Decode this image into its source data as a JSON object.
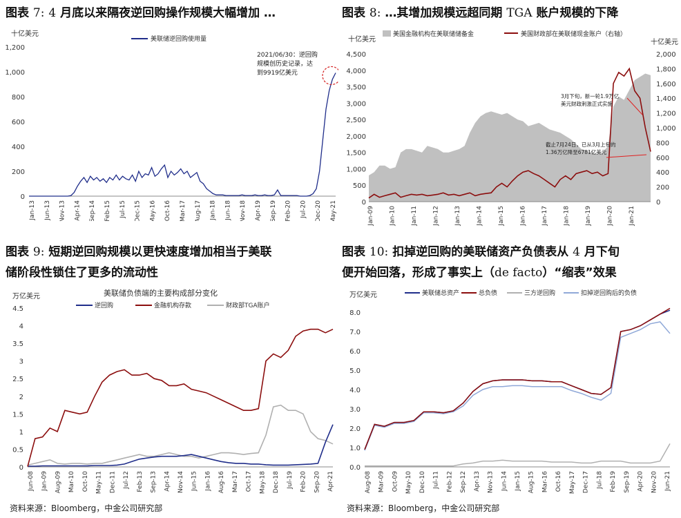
{
  "footer": {
    "source": "资料来源：Bloomberg，中金公司研究部"
  },
  "charts": [
    {
      "id": "c7",
      "caption_prefix": "图表",
      "caption_num": "7:",
      "caption_num2": "4",
      "caption_text": "月底以来隔夜逆回购操作规模大幅增加 …",
      "chart_data_ref": 0
    },
    {
      "id": "c8",
      "caption_prefix": "图表",
      "caption_num": "8:",
      "caption_text": "…其增加规模远超同期",
      "caption_tga": "TGA",
      "caption_text2": "账户规模的下降",
      "chart_data_ref": 1
    },
    {
      "id": "c9",
      "caption_prefix": "图表",
      "caption_num": "9:",
      "caption_text": "短期逆回购规模以更快速度增加相当于美联",
      "caption_line2": "储阶段性锁住了更多的流动性",
      "chart_data_ref": 2
    },
    {
      "id": "c10",
      "caption_prefix": "图表",
      "caption_num": "10:",
      "caption_text": "扣掉逆回购的美联储资产负债表从",
      "caption_num2": "4",
      "caption_text2": "月下旬",
      "caption_line2a": "便开始回落，形成了事实上（",
      "caption_defacto": "de facto",
      "caption_line2b": "）“缩表”效果",
      "chart_data_ref": 3
    }
  ],
  "chart_data": [
    {
      "type": "line",
      "title": "",
      "ylabel": "十亿美元",
      "ylim": [
        0,
        1200
      ],
      "yticks": [
        "0",
        "200",
        "400",
        "600",
        "800",
        "1,000",
        "1,200"
      ],
      "xticks": [
        "Jan-13",
        "Jun-13",
        "Nov-13",
        "Apr-14",
        "Sep-14",
        "Feb-15",
        "Jul-15",
        "Dec-15",
        "May-16",
        "Oct-16",
        "Mar-17",
        "Aug-17",
        "Jan-18",
        "Jun-18",
        "Nov-18",
        "Apr-19",
        "Sep-19",
        "Feb-20",
        "Jul-20",
        "Dec-20",
        "May-21"
      ],
      "legend": [
        "美联储逆回购使用量"
      ],
      "series_color": "#1f2d8a",
      "annotation": {
        "text": [
          "2021/06/30：逆回购",
          "规模创历史记录，达",
          "到9919亿美元"
        ],
        "value": 991.9,
        "date": "2021/06/30"
      },
      "series": [
        {
          "name": "美联储逆回购使用量",
          "values": [
            0,
            0,
            0,
            0,
            0,
            0,
            0,
            0,
            0,
            0,
            0,
            0,
            0,
            5,
            30,
            80,
            120,
            150,
            110,
            160,
            130,
            150,
            120,
            140,
            110,
            150,
            130,
            170,
            130,
            160,
            140,
            130,
            170,
            120,
            200,
            150,
            180,
            170,
            230,
            160,
            180,
            220,
            250,
            150,
            200,
            170,
            190,
            220,
            180,
            200,
            150,
            170,
            190,
            120,
            100,
            60,
            40,
            20,
            10,
            10,
            10,
            5,
            5,
            5,
            5,
            5,
            10,
            5,
            5,
            5,
            10,
            5,
            5,
            10,
            5,
            5,
            10,
            50,
            5,
            5,
            5,
            5,
            5,
            5,
            0,
            0,
            0,
            5,
            20,
            60,
            200,
            450,
            700,
            850,
            940,
            991.9
          ]
        }
      ]
    },
    {
      "type": "area+line",
      "ylabel_left": "十亿美元",
      "ylabel_right": "十亿美元",
      "ylim_left": [
        0,
        4500
      ],
      "ylim_right": [
        0,
        2000
      ],
      "yticks_left": [
        "0",
        "500",
        "1,000",
        "1,500",
        "2,000",
        "2,500",
        "3,000",
        "3,500",
        "4,000",
        "4,500"
      ],
      "yticks_right": [
        "0",
        "200",
        "400",
        "600",
        "800",
        "1,000",
        "1,200",
        "1,400",
        "1,600",
        "1,800",
        "2,000"
      ],
      "xticks": [
        "Jan-09",
        "Jan-10",
        "Jan-11",
        "Jan-12",
        "Jan-13",
        "Jan-14",
        "Jan-15",
        "Jan-16",
        "Jan-17",
        "Jan-18",
        "Jan-19",
        "Jan-20",
        "Jan-21"
      ],
      "legend": [
        "美国金融机构在美联储储备金",
        "美国财政部在美联储现金账户（右轴）"
      ],
      "area_color": "#c0c0c0",
      "line_color": "#8b0d0d",
      "annotations": [
        [
          "3月下旬，新一轮1.9万亿",
          "美元财政刺激正式实施"
        ],
        [
          "截止7月24日，已从3月上旬的",
          "1.36万亿降至6781亿美元"
        ]
      ],
      "series": [
        {
          "name": "美国金融机构在美联储储备金",
          "axis": "left",
          "values": [
            800,
            900,
            1100,
            1100,
            1000,
            1050,
            1500,
            1600,
            1600,
            1550,
            1500,
            1700,
            1650,
            1600,
            1500,
            1500,
            1550,
            1600,
            1700,
            2100,
            2400,
            2600,
            2700,
            2750,
            2700,
            2650,
            2700,
            2600,
            2500,
            2450,
            2300,
            2350,
            2400,
            2300,
            2200,
            2150,
            2100,
            2000,
            1900,
            1750,
            1600,
            1550,
            1500,
            1450,
            1500,
            1700,
            2900,
            3200,
            3100,
            3400,
            3700,
            3800,
            3900,
            3850
          ]
        },
        {
          "name": "美国财政部在美联储现金账户（右轴）",
          "axis": "right",
          "values": [
            50,
            100,
            60,
            80,
            100,
            120,
            60,
            80,
            100,
            90,
            100,
            80,
            90,
            100,
            120,
            90,
            100,
            80,
            100,
            120,
            80,
            100,
            110,
            120,
            200,
            250,
            200,
            280,
            350,
            400,
            420,
            380,
            350,
            300,
            250,
            200,
            300,
            350,
            300,
            380,
            400,
            420,
            380,
            400,
            350,
            380,
            1600,
            1750,
            1700,
            1800,
            1500,
            1400,
            1000,
            678
          ]
        }
      ]
    },
    {
      "type": "line",
      "title": "美联储负债端的主要构成部分变化",
      "ylabel": "万亿美元",
      "ylim": [
        0,
        4.5
      ],
      "yticks": [
        "0",
        "0.5",
        "1",
        "1.5",
        "2",
        "2.5",
        "3",
        "3.5",
        "4",
        "4.5"
      ],
      "xticks": [
        "Jun-08",
        "Jan-09",
        "Aug-09",
        "Mar-10",
        "Oct-10",
        "May-11",
        "Dec-11",
        "Jul-12",
        "Feb-13",
        "Sep-13",
        "Apr-14",
        "Nov-14",
        "Jun-15",
        "Jan-16",
        "Aug-16",
        "Mar-17",
        "Oct-17",
        "May-18",
        "Dec-18",
        "Jul-19",
        "Feb-20",
        "Sep-20",
        "Apr-21"
      ],
      "legend": [
        "逆回购",
        "金融机构存款",
        "财政部TGA账户"
      ],
      "colors": [
        "#1f2d8a",
        "#8b0d0d",
        "#b0b0b0"
      ],
      "series": [
        {
          "name": "逆回购",
          "values": [
            0.02,
            0.02,
            0.03,
            0.03,
            0.03,
            0.03,
            0.03,
            0.03,
            0.03,
            0.04,
            0.04,
            0.04,
            0.05,
            0.08,
            0.15,
            0.22,
            0.25,
            0.28,
            0.3,
            0.3,
            0.3,
            0.32,
            0.35,
            0.3,
            0.25,
            0.2,
            0.15,
            0.12,
            0.1,
            0.1,
            0.08,
            0.08,
            0.06,
            0.05,
            0.05,
            0.05,
            0.06,
            0.07,
            0.08,
            0.1,
            0.7,
            1.2
          ]
        },
        {
          "name": "金融机构存款",
          "values": [
            0.01,
            0.8,
            0.85,
            1.1,
            1.0,
            1.6,
            1.55,
            1.5,
            1.55,
            2.0,
            2.4,
            2.6,
            2.7,
            2.75,
            2.6,
            2.6,
            2.65,
            2.5,
            2.45,
            2.3,
            2.3,
            2.35,
            2.2,
            2.15,
            2.1,
            2.0,
            1.9,
            1.8,
            1.7,
            1.6,
            1.6,
            1.65,
            3.0,
            3.2,
            3.1,
            3.3,
            3.7,
            3.85,
            3.9,
            3.9,
            3.8,
            3.9
          ]
        },
        {
          "name": "财政部TGA账户",
          "values": [
            0.05,
            0.1,
            0.15,
            0.2,
            0.1,
            0.08,
            0.1,
            0.1,
            0.08,
            0.1,
            0.1,
            0.15,
            0.2,
            0.25,
            0.3,
            0.35,
            0.3,
            0.3,
            0.35,
            0.4,
            0.35,
            0.3,
            0.3,
            0.25,
            0.3,
            0.35,
            0.4,
            0.4,
            0.38,
            0.35,
            0.38,
            0.4,
            0.9,
            1.7,
            1.75,
            1.6,
            1.6,
            1.5,
            1.0,
            0.8,
            0.75,
            0.65
          ]
        }
      ]
    },
    {
      "type": "line",
      "ylabel": "万亿美元",
      "ylim": [
        0,
        8.5
      ],
      "yticks": [
        "0.0",
        "1.0",
        "2.0",
        "3.0",
        "4.0",
        "5.0",
        "6.0",
        "7.0",
        "8.0"
      ],
      "xticks": [
        "Aug-08",
        "Mar-09",
        "Oct-09",
        "May-10",
        "Dec-10",
        "Jul-11",
        "Feb-12",
        "Sep-12",
        "Apr-13",
        "Nov-13",
        "Jun-14",
        "Jan-15",
        "Aug-15",
        "Mar-16",
        "Oct-16",
        "May-17",
        "Dec-17",
        "Jul-18",
        "Feb-19",
        "Sep-19",
        "Apr-20",
        "Nov-20",
        "Jun-21"
      ],
      "legend": [
        "美联储总资产",
        "总负债",
        "三方逆回购",
        "扣掉逆回购后的负债"
      ],
      "colors": [
        "#1f2d8a",
        "#8b0d0d",
        "#b0b0b0",
        "#8fa8d8"
      ],
      "series": [
        {
          "name": "美联储总资产",
          "values": [
            0.9,
            2.2,
            2.1,
            2.3,
            2.3,
            2.4,
            2.85,
            2.85,
            2.8,
            2.9,
            3.3,
            3.9,
            4.3,
            4.45,
            4.5,
            4.5,
            4.5,
            4.45,
            4.45,
            4.4,
            4.4,
            4.2,
            4.0,
            3.8,
            3.75,
            4.1,
            7.0,
            7.1,
            7.3,
            7.6,
            7.9,
            8.1
          ]
        },
        {
          "name": "总负债",
          "values": [
            0.9,
            2.2,
            2.1,
            2.3,
            2.3,
            2.4,
            2.85,
            2.85,
            2.8,
            2.9,
            3.3,
            3.9,
            4.3,
            4.45,
            4.5,
            4.5,
            4.5,
            4.45,
            4.45,
            4.4,
            4.4,
            4.2,
            4.0,
            3.8,
            3.75,
            4.1,
            7.0,
            7.1,
            7.3,
            7.6,
            7.9,
            8.2
          ]
        },
        {
          "name": "三方逆回购",
          "values": [
            0.05,
            0.05,
            0.05,
            0.05,
            0.05,
            0.05,
            0.05,
            0.05,
            0.05,
            0.05,
            0.15,
            0.2,
            0.3,
            0.3,
            0.35,
            0.3,
            0.3,
            0.3,
            0.3,
            0.25,
            0.25,
            0.25,
            0.2,
            0.2,
            0.3,
            0.3,
            0.3,
            0.2,
            0.2,
            0.2,
            0.3,
            1.2
          ]
        },
        {
          "name": "扣掉逆回购后的负债",
          "values": [
            0.85,
            2.15,
            2.05,
            2.25,
            2.25,
            2.35,
            2.8,
            2.8,
            2.75,
            2.85,
            3.15,
            3.7,
            4.0,
            4.15,
            4.15,
            4.2,
            4.2,
            4.15,
            4.15,
            4.15,
            4.15,
            3.95,
            3.8,
            3.6,
            3.45,
            3.8,
            6.7,
            6.9,
            7.1,
            7.4,
            7.5,
            6.9
          ]
        }
      ]
    }
  ]
}
